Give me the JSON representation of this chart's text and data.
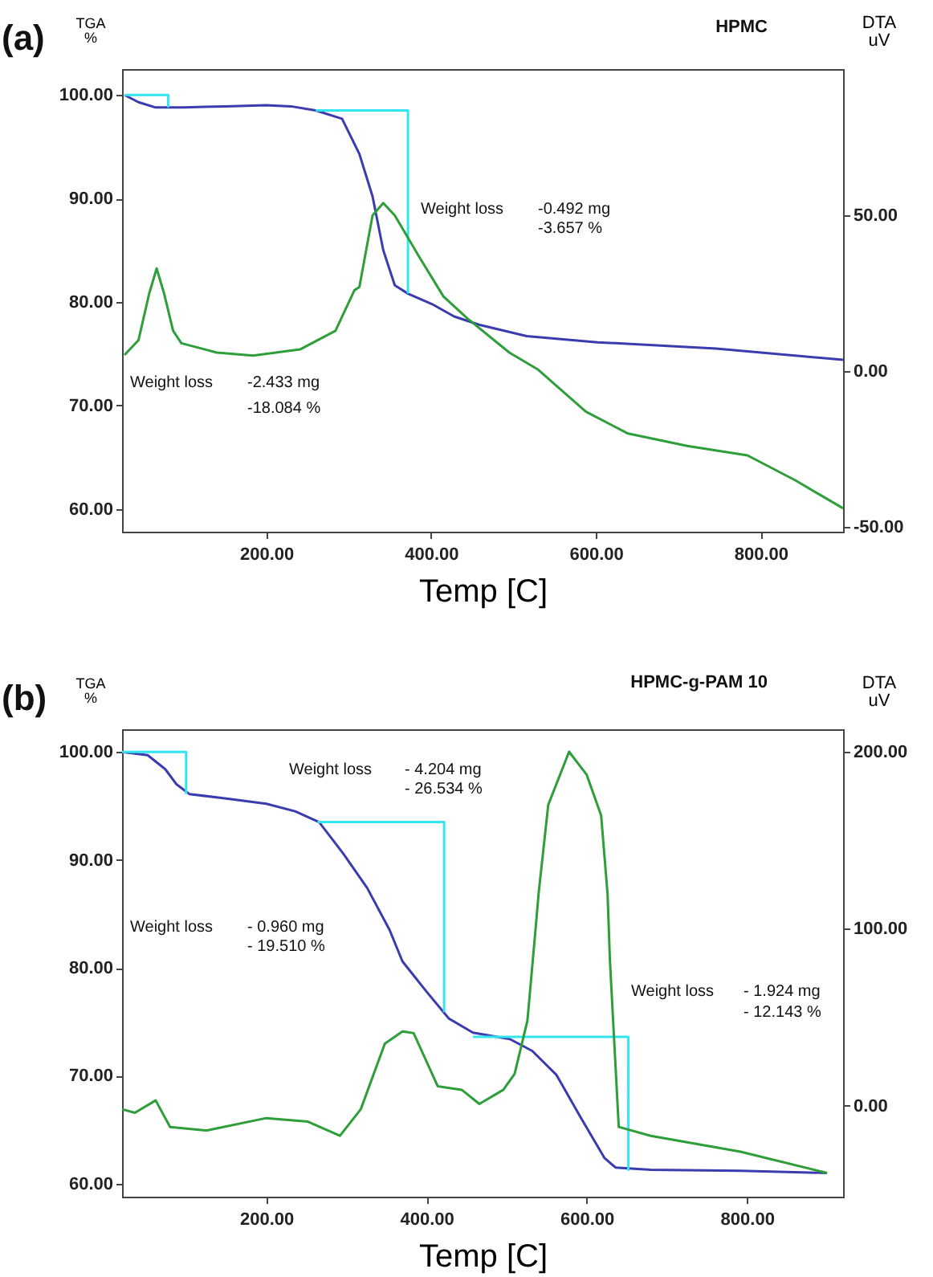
{
  "chart_data": [
    {
      "type": "line",
      "title": "HPMC",
      "xlabel": "Temp  [C]",
      "ylabel": "TGA %",
      "y2label": "DTA uV",
      "xlim": [
        25,
        900
      ],
      "xticks": [
        {
          "value": 200,
          "label": "200.00"
        },
        {
          "value": 400,
          "label": "400.00"
        },
        {
          "value": 600,
          "label": "600.00"
        },
        {
          "value": 800,
          "label": "800.00"
        }
      ],
      "ylim": [
        57.8,
        102.5
      ],
      "yticks": [
        {
          "value": 60,
          "label": "60.00"
        },
        {
          "value": 70,
          "label": "70.00"
        },
        {
          "value": 80,
          "label": "80.00"
        },
        {
          "value": 90,
          "label": "90.00"
        },
        {
          "value": 100,
          "label": "100.00"
        }
      ],
      "y2lim": [
        -51.5,
        97
      ],
      "y2ticks": [
        {
          "value": -50,
          "label": "-50.00"
        },
        {
          "value": 0,
          "label": "0.00"
        },
        {
          "value": 50,
          "label": "50.00"
        }
      ],
      "series": [
        {
          "color": "#3b3bb0",
          "x": [
            28,
            45,
            65,
            100,
            150,
            200,
            230,
            260,
            292,
            313,
            329,
            342,
            356,
            372,
            401,
            428,
            458,
            516,
            602,
            746,
            900
          ],
          "values": [
            100,
            99.3,
            98.8,
            98.8,
            98.9,
            99,
            98.9,
            98.5,
            97.7,
            94.3,
            90.2,
            85,
            81.6,
            80.8,
            79.8,
            78.6,
            77.8,
            76.7,
            76.1,
            75.5,
            74.4
          ]
        },
        {
          "color": "#2e9e3a",
          "axis": "y2",
          "x": [
            28,
            45,
            58,
            67,
            76,
            87,
            97,
            140,
            184,
            241,
            284,
            307,
            313,
            329,
            342,
            356,
            385,
            415,
            444,
            495,
            530,
            588,
            639,
            711,
            784,
            842,
            900
          ],
          "values": [
            5.2,
            10,
            25,
            33,
            25,
            13,
            9,
            6,
            5,
            7,
            13,
            26,
            27,
            50,
            54,
            50,
            37,
            24,
            17,
            6,
            0.5,
            -13,
            -20,
            -24,
            -27,
            -35,
            -44
          ]
        },
        {
          "color": "#33e5f0",
          "x": [
            28,
            81,
            81
          ],
          "values": [
            100,
            100,
            98.8
          ]
        },
        {
          "color": "#33e5f0",
          "x": [
            260,
            372,
            372
          ],
          "values": [
            98.5,
            98.5,
            80.8
          ]
        }
      ],
      "annotations": [
        "(a)",
        "Weight loss",
        "-0.492 mg",
        "-3.657 %",
        "Weight loss",
        "-2.433 mg",
        "-18.084 %"
      ]
    },
    {
      "type": "line",
      "title": "HPMC-g-PAM 10",
      "xlabel": "Temp  [C]",
      "ylabel": "TGA %",
      "y2label": "DTA uV",
      "xlim": [
        20,
        920
      ],
      "xticks": [
        {
          "value": 200,
          "label": "200.00"
        },
        {
          "value": 400,
          "label": "400.00"
        },
        {
          "value": 600,
          "label": "600.00"
        },
        {
          "value": 800,
          "label": "800.00"
        }
      ],
      "ylim": [
        58.8,
        102.1
      ],
      "yticks": [
        {
          "value": 60,
          "label": "60.00"
        },
        {
          "value": 70,
          "label": "70.00"
        },
        {
          "value": 80,
          "label": "80.00"
        },
        {
          "value": 90,
          "label": "90.00"
        },
        {
          "value": 100,
          "label": "100.00"
        }
      ],
      "y2lim": [
        -51.4,
        212.7
      ],
      "y2ticks": [
        {
          "value": 0,
          "label": "0.00"
        },
        {
          "value": 100,
          "label": "100.00"
        },
        {
          "value": 200,
          "label": "200.00"
        }
      ],
      "series": [
        {
          "color": "#3b3bb0",
          "x": [
            20,
            52,
            74,
            88,
            104,
            148,
            200,
            236,
            266,
            296,
            326,
            354,
            370,
            400,
            428,
            458,
            504,
            532,
            562,
            592,
            622,
            636,
            680,
            792,
            900
          ],
          "values": [
            100,
            99.7,
            98.4,
            97,
            96.1,
            95.7,
            95.2,
            94.5,
            93.5,
            90.6,
            87.4,
            83.5,
            80.6,
            77.8,
            75.3,
            74,
            73.4,
            72.3,
            70.1,
            66.2,
            62.4,
            61.5,
            61.3,
            61.2,
            61
          ]
        },
        {
          "color": "#2e9e3a",
          "axis": "y2",
          "x": [
            20,
            36,
            62,
            80,
            126,
            200,
            252,
            292,
            318,
            348,
            370,
            384,
            414,
            444,
            466,
            496,
            510,
            526,
            536,
            540,
            552,
            578,
            600,
            618,
            626,
            629,
            640,
            680,
            792,
            900
          ],
          "values": [
            -2,
            -4,
            3,
            -12,
            -14,
            -7,
            -9,
            -17,
            -2,
            35,
            42,
            41,
            11,
            9,
            1,
            9,
            18,
            48,
            99,
            120,
            170,
            200,
            187,
            164,
            120,
            82,
            -12,
            -17,
            -26,
            -38
          ]
        },
        {
          "color": "#33e5f0",
          "x": [
            20,
            100,
            100
          ],
          "values": [
            100,
            100,
            96.1
          ]
        },
        {
          "color": "#33e5f0",
          "x": [
            264,
            422,
            422
          ],
          "values": [
            93.5,
            93.5,
            75.9
          ]
        },
        {
          "color": "#33e5f0",
          "x": [
            458,
            652,
            652
          ],
          "values": [
            73.6,
            73.6,
            61.2
          ]
        }
      ],
      "annotations": [
        "(b)",
        "Weight loss",
        "- 4.204 mg",
        "- 26.534 %",
        "Weight loss",
        "- 0.960 mg",
        "- 19.510 %",
        "Weight loss",
        "- 1.924 mg",
        "- 12.143 %"
      ]
    }
  ]
}
